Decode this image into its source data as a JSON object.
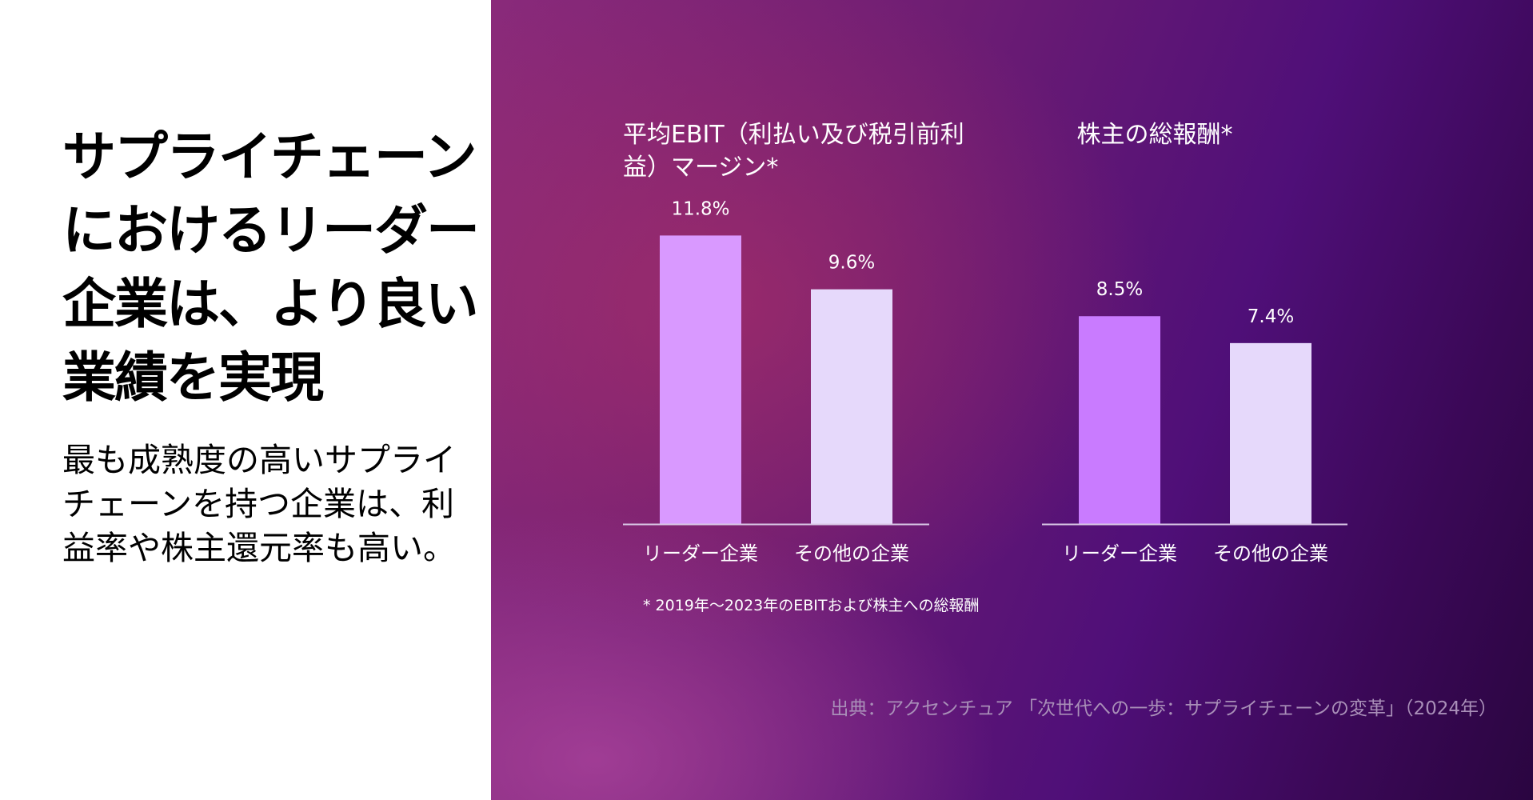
{
  "headline": "サプライチェーンにおけるリーダー企業は、より良い業績を実現",
  "body": "最も成熟度の高いサプライチェーンを持つ企業は、利益率や株主還元率も高い。",
  "chart_data": [
    {
      "type": "bar",
      "title": "平均EBIT（利払い及び税引前利益）マージン*",
      "categories": [
        "リーダー企業",
        "その他の企業"
      ],
      "values": [
        11.8,
        9.6
      ],
      "labels": [
        "11.8%",
        "9.6%"
      ],
      "colors": [
        "#d999ff",
        "#e6d9fb"
      ],
      "unit": "%",
      "ylim": [
        0,
        12.5
      ],
      "grid": false
    },
    {
      "type": "bar",
      "title": "株主の総報酬*",
      "categories": [
        "リーダー企業",
        "その他の企業"
      ],
      "values": [
        8.5,
        7.4
      ],
      "labels": [
        "8.5%",
        "7.4%"
      ],
      "colors": [
        "#c97bff",
        "#e6d9fb"
      ],
      "unit": "%",
      "ylim": [
        0,
        12.5
      ],
      "grid": false
    }
  ],
  "footnote": "* 2019年～2023年のEBITおよび株主への総報酬",
  "source": "出典：アクセンチュア 「次世代への一歩：サプライチェーンの変革」（2024年）"
}
